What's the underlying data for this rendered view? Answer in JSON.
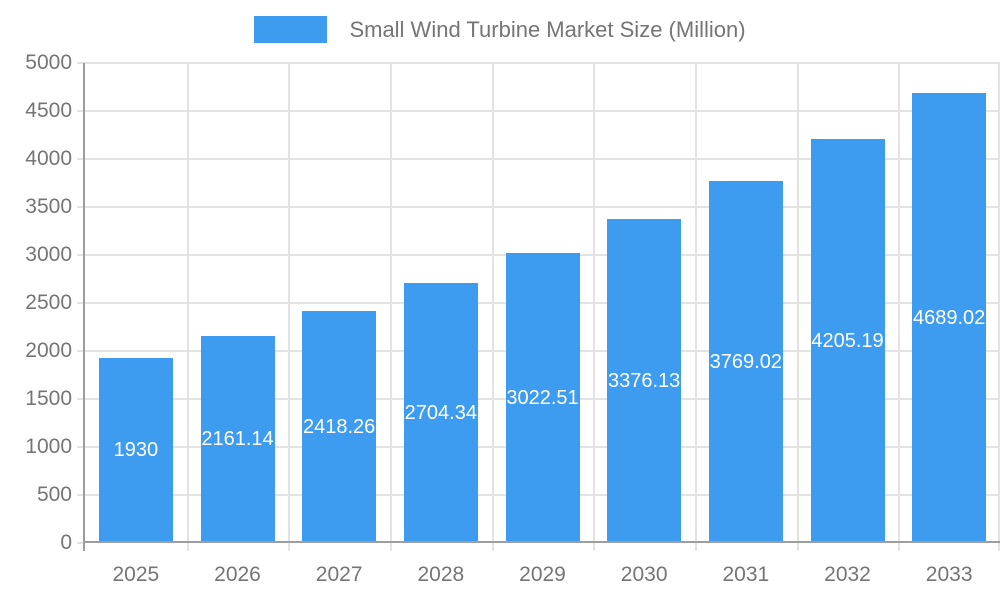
{
  "legend": {
    "label": "Small Wind Turbine Market Size (Million)",
    "swatch_color": "#3D9BF0"
  },
  "chart_data": {
    "type": "bar",
    "categories": [
      "2025",
      "2026",
      "2027",
      "2028",
      "2029",
      "2030",
      "2031",
      "2032",
      "2033"
    ],
    "values": [
      1930,
      2161.14,
      2418.26,
      2704.34,
      3022.51,
      3376.13,
      3769.02,
      4205.19,
      4689.02
    ],
    "value_labels": [
      "1930",
      "2161.14",
      "2418.26",
      "2704.34",
      "3022.51",
      "3376.13",
      "3769.02",
      "4205.19",
      "4689.02"
    ],
    "series": [
      {
        "name": "Small Wind Turbine Market Size (Million)",
        "values": [
          1930,
          2161.14,
          2418.26,
          2704.34,
          3022.51,
          3376.13,
          3769.02,
          4205.19,
          4689.02
        ]
      }
    ],
    "title": "",
    "xlabel": "",
    "ylabel": "",
    "ylim": [
      0,
      5000
    ],
    "yticks": [
      0,
      500,
      1000,
      1500,
      2000,
      2500,
      3000,
      3500,
      4000,
      4500,
      5000
    ],
    "grid": true,
    "legend_position": "top",
    "colors": {
      "bar": "#3D9BF0",
      "bar_value_text": "#FFFFFF",
      "axis_text": "#757575",
      "gridline": "#E3E3E3",
      "axis_line": "#9E9E9E",
      "background": "#FFFFFF"
    }
  }
}
